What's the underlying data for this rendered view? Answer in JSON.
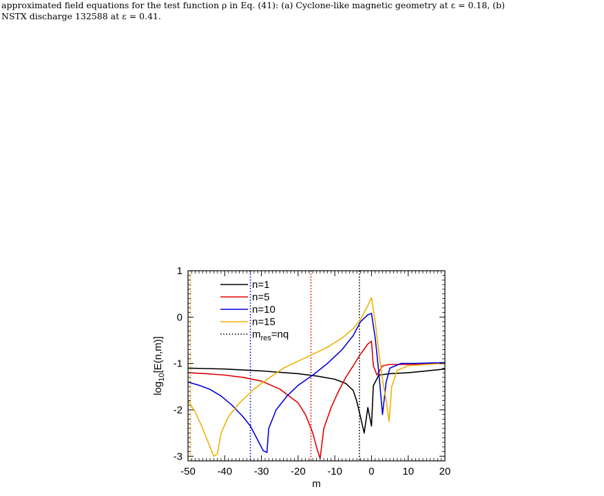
{
  "caption": {
    "line1": "approximated field equations for the test function ρ in Eq. (41): (a) Cyclone-like magnetic geometry at ε = 0.18, (b)",
    "line2": "NSTX discharge 132588 at ε = 0.41."
  },
  "chart_data": {
    "type": "line",
    "title": "",
    "xlabel": "m",
    "ylabel": "log10[E(n,m)]",
    "ylabel_parts": {
      "main": "log",
      "sub": "10",
      "rest": "[E(n,m)]"
    },
    "xlim": [
      -50,
      20
    ],
    "ylim": [
      -3.1,
      1.0
    ],
    "xticks": [
      -50,
      -40,
      -30,
      -20,
      -10,
      0,
      10,
      20
    ],
    "yticks": [
      -3,
      -2,
      -1,
      0,
      1
    ],
    "grid": false,
    "legend_position": "top-left",
    "series": [
      {
        "name": "n=1",
        "color": "#000000",
        "points": [
          [
            -50,
            -1.1
          ],
          [
            -45,
            -1.11
          ],
          [
            -40,
            -1.12
          ],
          [
            -35,
            -1.14
          ],
          [
            -30,
            -1.16
          ],
          [
            -25,
            -1.19
          ],
          [
            -20,
            -1.22
          ],
          [
            -15,
            -1.27
          ],
          [
            -10,
            -1.34
          ],
          [
            -7,
            -1.43
          ],
          [
            -5,
            -1.58
          ],
          [
            -4,
            -1.82
          ],
          [
            -3,
            -2.15
          ],
          [
            -2,
            -2.5
          ],
          [
            -1,
            -1.95
          ],
          [
            0,
            -2.35
          ],
          [
            0.5,
            -1.48
          ],
          [
            2,
            -1.25
          ],
          [
            5,
            -1.22
          ],
          [
            10,
            -1.2
          ],
          [
            15,
            -1.16
          ],
          [
            20,
            -1.12
          ]
        ]
      },
      {
        "name": "n=5",
        "color": "#e00000",
        "points": [
          [
            -50,
            -1.2
          ],
          [
            -45,
            -1.22
          ],
          [
            -40,
            -1.25
          ],
          [
            -35,
            -1.3
          ],
          [
            -30,
            -1.38
          ],
          [
            -25,
            -1.55
          ],
          [
            -20,
            -1.85
          ],
          [
            -18,
            -2.1
          ],
          [
            -16,
            -2.5
          ],
          [
            -15,
            -2.8
          ],
          [
            -14,
            -3.05
          ],
          [
            -13,
            -2.4
          ],
          [
            -11,
            -1.95
          ],
          [
            -9,
            -1.6
          ],
          [
            -7,
            -1.3
          ],
          [
            -5,
            -1.05
          ],
          [
            -3,
            -0.8
          ],
          [
            -1,
            -0.58
          ],
          [
            0,
            -0.52
          ],
          [
            0.5,
            -1.05
          ],
          [
            1.5,
            -1.25
          ],
          [
            3,
            -1.05
          ],
          [
            5,
            -1.02
          ],
          [
            10,
            -1.02
          ],
          [
            15,
            -1.01
          ],
          [
            20,
            -0.99
          ]
        ]
      },
      {
        "name": "n=10",
        "color": "#0000e0",
        "points": [
          [
            -50,
            -1.4
          ],
          [
            -47,
            -1.47
          ],
          [
            -44,
            -1.56
          ],
          [
            -41,
            -1.7
          ],
          [
            -38,
            -1.9
          ],
          [
            -35,
            -2.15
          ],
          [
            -33,
            -2.35
          ],
          [
            -31,
            -2.65
          ],
          [
            -29.5,
            -2.88
          ],
          [
            -28.5,
            -2.92
          ],
          [
            -28,
            -2.4
          ],
          [
            -26,
            -2.0
          ],
          [
            -23,
            -1.7
          ],
          [
            -20,
            -1.47
          ],
          [
            -16,
            -1.25
          ],
          [
            -12,
            -1.0
          ],
          [
            -8,
            -0.7
          ],
          [
            -5,
            -0.4
          ],
          [
            -3,
            -0.1
          ],
          [
            -1,
            0.05
          ],
          [
            0,
            0.08
          ],
          [
            1,
            -0.45
          ],
          [
            2,
            -1.2
          ],
          [
            3,
            -2.1
          ],
          [
            4,
            -1.4
          ],
          [
            5,
            -1.1
          ],
          [
            8,
            -1.0
          ],
          [
            12,
            -1.0
          ],
          [
            20,
            -0.98
          ]
        ]
      },
      {
        "name": "n=15",
        "color": "#f0b000",
        "points": [
          [
            -50,
            -1.8
          ],
          [
            -48,
            -2.05
          ],
          [
            -46,
            -2.4
          ],
          [
            -44,
            -2.8
          ],
          [
            -43,
            -3.0
          ],
          [
            -42,
            -2.95
          ],
          [
            -41,
            -2.5
          ],
          [
            -39,
            -2.15
          ],
          [
            -36,
            -1.85
          ],
          [
            -32,
            -1.55
          ],
          [
            -28,
            -1.32
          ],
          [
            -24,
            -1.1
          ],
          [
            -20,
            -0.95
          ],
          [
            -16,
            -0.8
          ],
          [
            -12,
            -0.65
          ],
          [
            -8,
            -0.45
          ],
          [
            -5,
            -0.25
          ],
          [
            -3,
            -0.05
          ],
          [
            -1,
            0.25
          ],
          [
            0,
            0.42
          ],
          [
            1,
            -0.1
          ],
          [
            2,
            -0.75
          ],
          [
            3,
            -1.35
          ],
          [
            4,
            -1.8
          ],
          [
            4.8,
            -2.25
          ],
          [
            5.5,
            -1.5
          ],
          [
            7,
            -1.15
          ],
          [
            10,
            -1.05
          ],
          [
            15,
            -1.02
          ],
          [
            20,
            -1.0
          ]
        ]
      },
      {
        "name": "m_res=nq",
        "legend_label": {
          "main": "m",
          "sub": "res",
          "rest": "=nq"
        },
        "color": "#000000",
        "dashed": true,
        "legend_only": true
      }
    ],
    "resonance_lines": [
      {
        "series": "n=1",
        "x": -3.3,
        "color": "#000000"
      },
      {
        "series": "n=5",
        "x": -16.5,
        "color": "#e00000"
      },
      {
        "series": "n=10",
        "x": -33.0,
        "color": "#0000e0"
      },
      {
        "series": "n=15",
        "x": -49.3,
        "color": "#f0b000"
      }
    ]
  }
}
